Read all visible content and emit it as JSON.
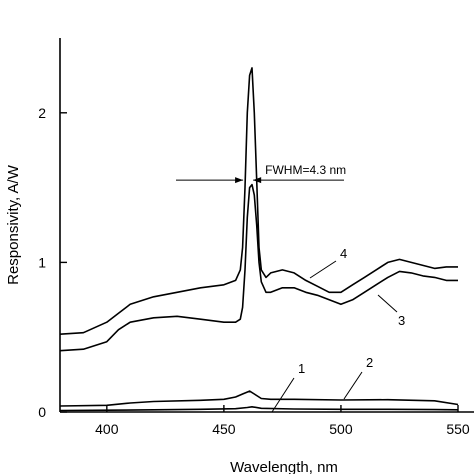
{
  "chart_data": {
    "type": "line",
    "title": "",
    "xlabel": "Wavelength, nm",
    "ylabel": "Responsivity, A/W",
    "xlim": [
      380,
      550
    ],
    "ylim": [
      0,
      2.5
    ],
    "x_ticks": [
      400,
      450,
      500,
      550
    ],
    "y_ticks": [
      0,
      1,
      2
    ],
    "grid": false,
    "annotation": {
      "text": "FWHM=4.3 nm",
      "x_left": 458.2,
      "x_right": 462.5,
      "y": 1.55
    },
    "series": [
      {
        "label": "1",
        "x": [
          380,
          400,
          420,
          440,
          455,
          460,
          462,
          466,
          480,
          500,
          520,
          540,
          550
        ],
        "y": [
          0.01,
          0.012,
          0.015,
          0.018,
          0.022,
          0.03,
          0.035,
          0.025,
          0.02,
          0.018,
          0.018,
          0.016,
          0.015
        ]
      },
      {
        "label": "2",
        "x": [
          380,
          400,
          410,
          420,
          440,
          450,
          455,
          458,
          461,
          463,
          466,
          470,
          480,
          500,
          520,
          540,
          550
        ],
        "y": [
          0.04,
          0.045,
          0.06,
          0.07,
          0.078,
          0.085,
          0.1,
          0.12,
          0.14,
          0.12,
          0.09,
          0.085,
          0.085,
          0.08,
          0.082,
          0.075,
          0.05
        ]
      },
      {
        "label": "3",
        "x": [
          380,
          390,
          400,
          405,
          410,
          420,
          430,
          440,
          450,
          455,
          457,
          458,
          459,
          460,
          461,
          462,
          463,
          464,
          465,
          466,
          468,
          470,
          475,
          480,
          485,
          490,
          495,
          500,
          505,
          510,
          515,
          520,
          525,
          530,
          535,
          540,
          545,
          550
        ],
        "y": [
          0.41,
          0.42,
          0.47,
          0.55,
          0.6,
          0.63,
          0.64,
          0.62,
          0.6,
          0.6,
          0.62,
          0.7,
          0.95,
          1.3,
          1.5,
          1.52,
          1.45,
          1.25,
          1.0,
          0.87,
          0.8,
          0.8,
          0.83,
          0.83,
          0.8,
          0.78,
          0.75,
          0.72,
          0.75,
          0.8,
          0.85,
          0.9,
          0.94,
          0.93,
          0.91,
          0.9,
          0.88,
          0.88
        ]
      },
      {
        "label": "4",
        "x": [
          380,
          390,
          400,
          405,
          410,
          420,
          430,
          440,
          450,
          455,
          457,
          458,
          459,
          460,
          461,
          462,
          463,
          464,
          465,
          466,
          468,
          470,
          475,
          480,
          485,
          490,
          495,
          500,
          505,
          510,
          515,
          520,
          525,
          530,
          535,
          540,
          545,
          550
        ],
        "y": [
          0.52,
          0.53,
          0.6,
          0.66,
          0.72,
          0.77,
          0.8,
          0.83,
          0.85,
          0.88,
          0.95,
          1.1,
          1.5,
          2.0,
          2.25,
          2.3,
          2.0,
          1.55,
          1.1,
          0.95,
          0.9,
          0.93,
          0.95,
          0.93,
          0.88,
          0.84,
          0.8,
          0.8,
          0.85,
          0.9,
          0.95,
          1.0,
          1.02,
          1.0,
          0.98,
          0.96,
          0.97,
          0.97
        ]
      }
    ]
  }
}
